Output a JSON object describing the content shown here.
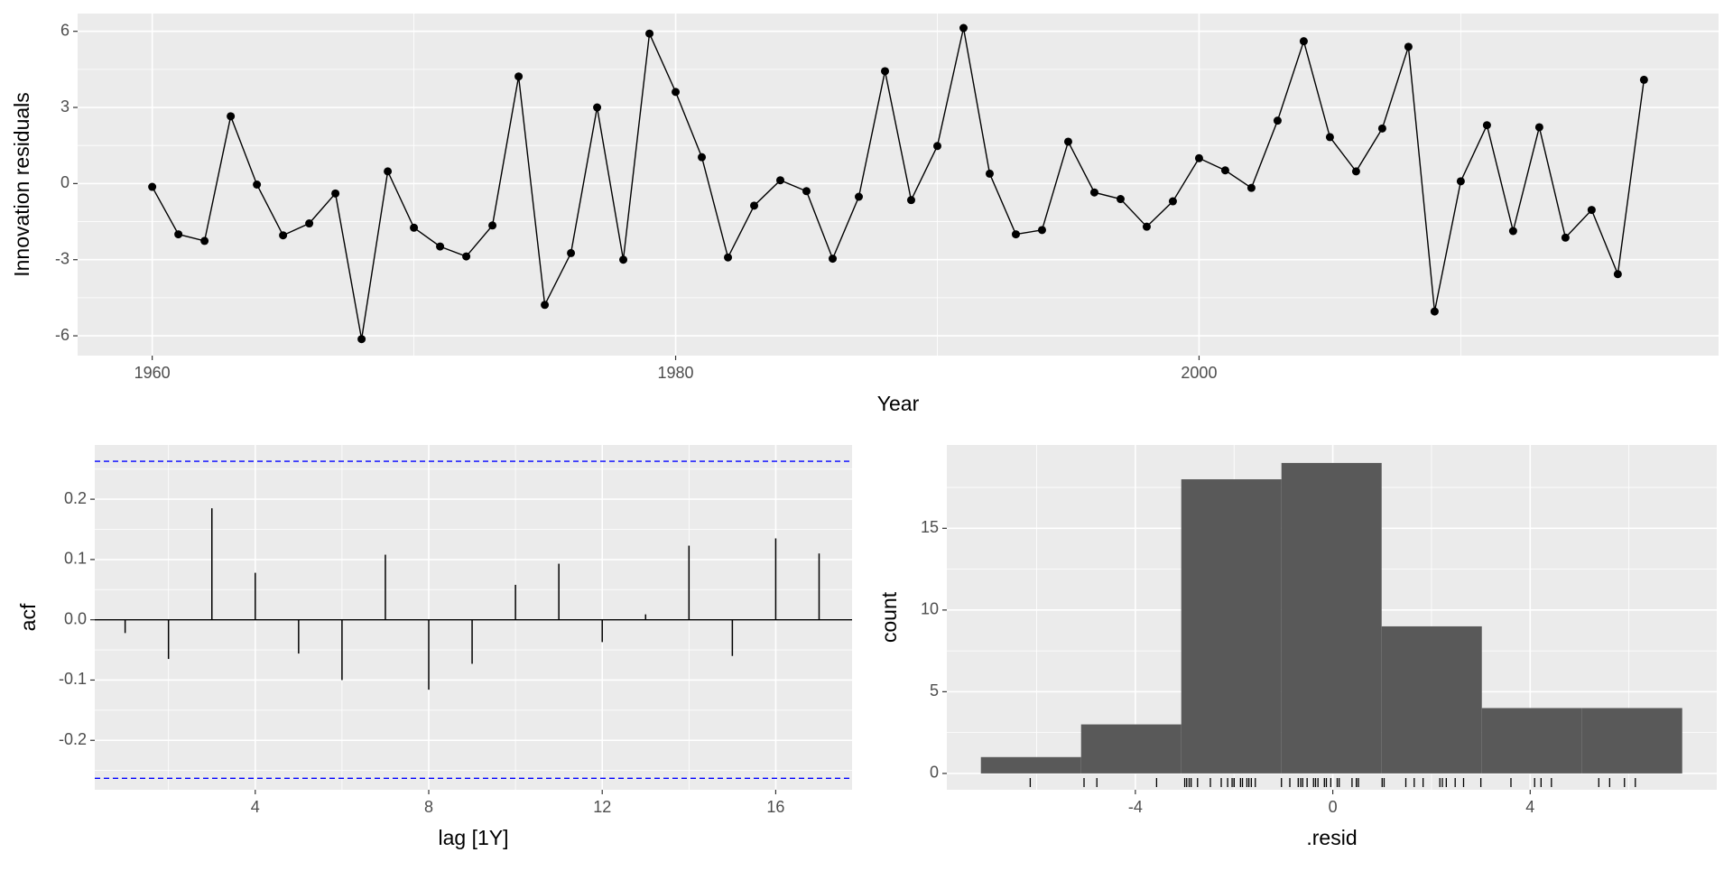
{
  "chart_data": [
    {
      "type": "line",
      "x_label": "Year",
      "y_label": "Innovation residuals",
      "x": [
        1960,
        1961,
        1962,
        1963,
        1964,
        1965,
        1966,
        1967,
        1968,
        1969,
        1970,
        1971,
        1972,
        1973,
        1974,
        1975,
        1976,
        1977,
        1978,
        1979,
        1980,
        1981,
        1982,
        1983,
        1984,
        1985,
        1986,
        1987,
        1988,
        1989,
        1990,
        1991,
        1992,
        1993,
        1994,
        1995,
        1996,
        1997,
        1998,
        1999,
        2000,
        2001,
        2002,
        2003,
        2004,
        2005,
        2006,
        2007,
        2008,
        2009,
        2010,
        2011,
        2012,
        2013,
        2014,
        2015,
        2016,
        2017
      ],
      "values": [
        -0.13,
        -2.0,
        -2.26,
        2.65,
        -0.04,
        -2.04,
        -1.57,
        -0.39,
        -6.13,
        0.48,
        -1.74,
        -2.48,
        -2.87,
        -1.65,
        4.22,
        -4.78,
        -2.74,
        3.0,
        -3.0,
        5.91,
        3.61,
        1.04,
        -2.91,
        -0.87,
        0.13,
        -0.3,
        -2.96,
        -0.52,
        4.43,
        -0.65,
        1.48,
        6.13,
        0.39,
        -2.0,
        -1.83,
        1.65,
        -0.35,
        -0.61,
        -1.7,
        -0.7,
        1.0,
        0.52,
        -0.17,
        2.48,
        5.61,
        1.83,
        0.48,
        2.17,
        5.39,
        -5.04,
        0.09,
        2.3,
        -1.87,
        2.22,
        -2.13,
        -1.04,
        -3.57,
        4.09
      ],
      "color": "#000000",
      "xlim": [
        1957.15,
        2019.85
      ],
      "xticks": [
        1960,
        1980,
        2000
      ],
      "ylim": [
        -6.78,
        6.7
      ],
      "yticks": [
        -6,
        -3,
        0,
        3,
        6
      ],
      "grid": true
    },
    {
      "type": "acf",
      "x_label": "lag [1Y]",
      "y_label": "acf",
      "x": [
        1,
        2,
        3,
        4,
        5,
        6,
        7,
        8,
        9,
        10,
        11,
        12,
        13,
        14,
        15,
        16,
        17
      ],
      "values": [
        -0.022,
        -0.065,
        0.185,
        0.078,
        -0.056,
        -0.1,
        0.108,
        -0.116,
        -0.073,
        0.058,
        0.093,
        -0.037,
        0.009,
        0.123,
        -0.06,
        0.135,
        0.11
      ],
      "color": "#000000",
      "ci": [
        0.263,
        -0.263
      ],
      "ci_color": "#0000ff",
      "xlim": [
        0.3,
        17.76
      ],
      "xticks": [
        4,
        8,
        12,
        16
      ],
      "ylim": [
        -0.282,
        0.29
      ],
      "yticks": [
        -0.2,
        -0.1,
        {
          "value": 0,
          "label": "0.0"
        },
        0.1,
        0.2
      ],
      "grid": true
    },
    {
      "type": "histogram",
      "x_label": ".resid",
      "y_label": "count",
      "bins": [
        -7.13,
        -5.1,
        -3.07,
        -1.04,
        0.99,
        3.02,
        5.05,
        7.08
      ],
      "values": [
        1,
        3,
        18,
        19,
        9,
        4,
        4
      ],
      "color": "#595959",
      "rug": true,
      "xlim": [
        -7.82,
        7.78
      ],
      "xticks": [
        -4,
        0,
        4
      ],
      "ylim": [
        -1.0,
        20.1
      ],
      "yticks": [
        0,
        5,
        10,
        15
      ],
      "grid": true
    }
  ]
}
